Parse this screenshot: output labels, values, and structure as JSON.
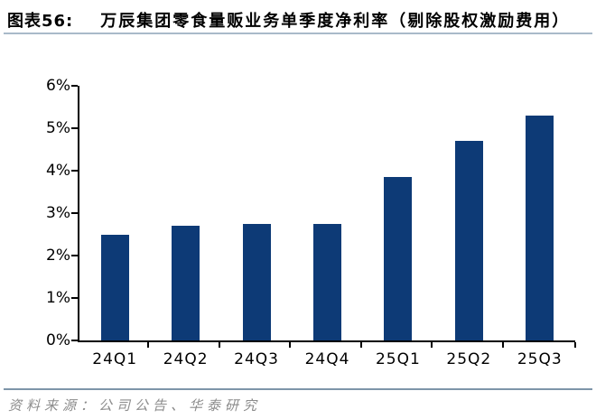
{
  "header": {
    "fig_label": "图表56:",
    "title": "万辰集团零食量贩业务单季度净利率（剔除股权激励费用）"
  },
  "footer": {
    "source": "资料来源：公司公告、华泰研究"
  },
  "colors": {
    "bar": "#0d3a76",
    "axis": "#000000",
    "header_rule": "#a9bac9",
    "footer_rule": "#7e95a9",
    "source_text": "#8c8c8c",
    "title_text": "#000000"
  },
  "chart_data": {
    "type": "bar",
    "categories": [
      "24Q1",
      "24Q2",
      "24Q3",
      "24Q4",
      "25Q1",
      "25Q2",
      "25Q3"
    ],
    "values": [
      2.5,
      2.7,
      2.75,
      2.75,
      3.85,
      4.7,
      5.3
    ],
    "title": "万辰集团零食量贩业务单季度净利率（剔除股权激励费用）",
    "xlabel": "",
    "ylabel": "",
    "ylim": [
      0,
      6
    ],
    "ytick_step": 1,
    "ytick_suffix": "%",
    "grid": false,
    "legend": "none",
    "bar_color": "#0d3a76"
  }
}
